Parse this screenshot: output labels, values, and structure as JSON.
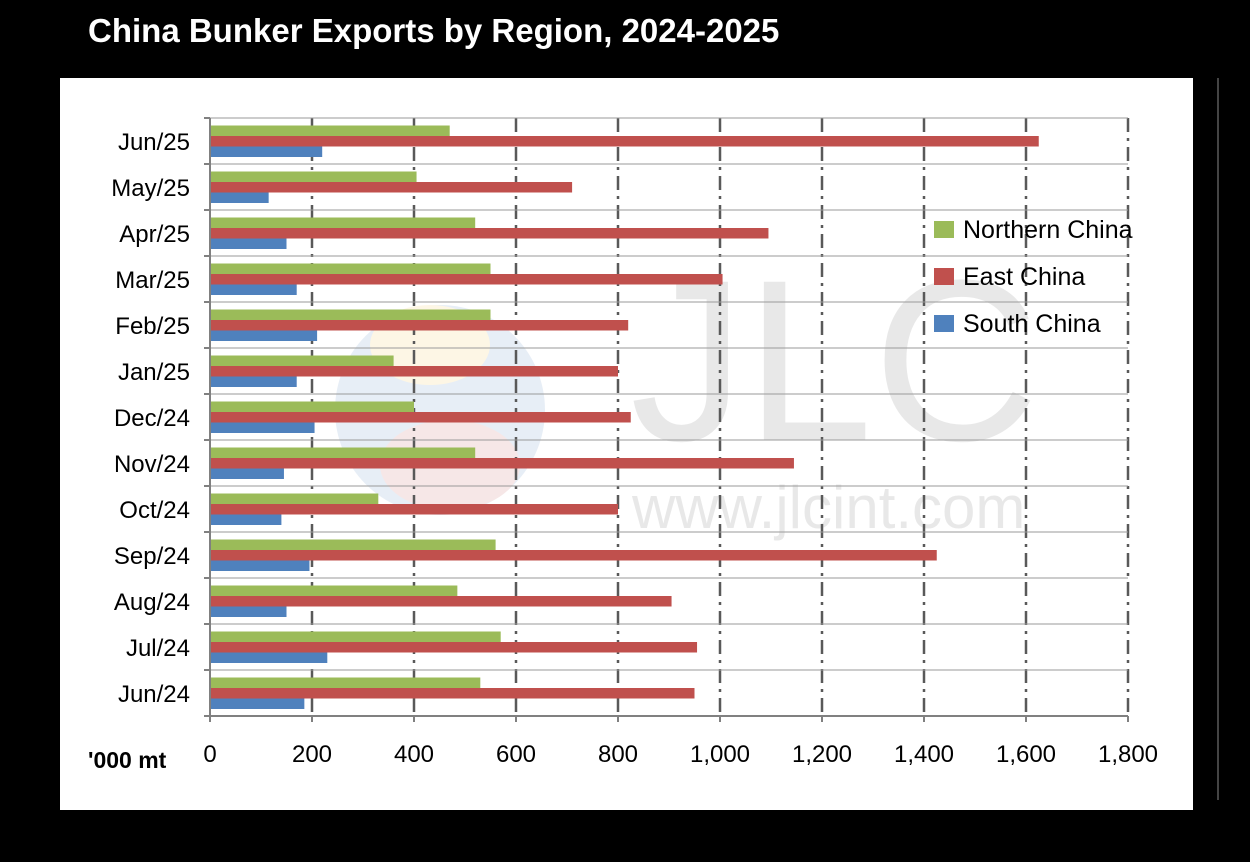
{
  "colors": {
    "background": "#000000",
    "panel": "#ffffff",
    "title": "#ffffff",
    "grid": "#595959",
    "axis": "#808080",
    "row_line": "#9a9a9a",
    "text": "#000000"
  },
  "watermark": {
    "letters": "JLC",
    "url": "www.jlcint.com"
  },
  "chart_data": {
    "type": "bar",
    "orientation": "horizontal",
    "title": "China Bunker Exports by Region, 2024-2025",
    "xlabel": "'000 mt",
    "ylabel": "",
    "xlim": [
      0,
      1800
    ],
    "xticks": [
      0,
      200,
      400,
      600,
      800,
      1000,
      1200,
      1400,
      1600,
      1800
    ],
    "xtick_labels": [
      "0",
      "200",
      "400",
      "600",
      "800",
      "1,000",
      "1,200",
      "1,400",
      "1,600",
      "1,800"
    ],
    "grid": "vertical dashed",
    "legend_position": "right",
    "categories": [
      "Jun/25",
      "May/25",
      "Apr/25",
      "Mar/25",
      "Feb/25",
      "Jan/25",
      "Dec/24",
      "Nov/24",
      "Oct/24",
      "Sep/24",
      "Aug/24",
      "Jul/24",
      "Jun/24"
    ],
    "series": [
      {
        "name": "Northern China",
        "color": "#9bbb59",
        "values": [
          470,
          405,
          520,
          550,
          550,
          360,
          400,
          520,
          330,
          560,
          485,
          570,
          530
        ]
      },
      {
        "name": "East China",
        "color": "#c0504d",
        "values": [
          1625,
          710,
          1095,
          1005,
          820,
          800,
          825,
          1145,
          800,
          1425,
          905,
          955,
          950
        ]
      },
      {
        "name": "South China",
        "color": "#4f81bd",
        "values": [
          220,
          115,
          150,
          170,
          210,
          170,
          205,
          145,
          140,
          195,
          150,
          230,
          185
        ]
      }
    ]
  }
}
